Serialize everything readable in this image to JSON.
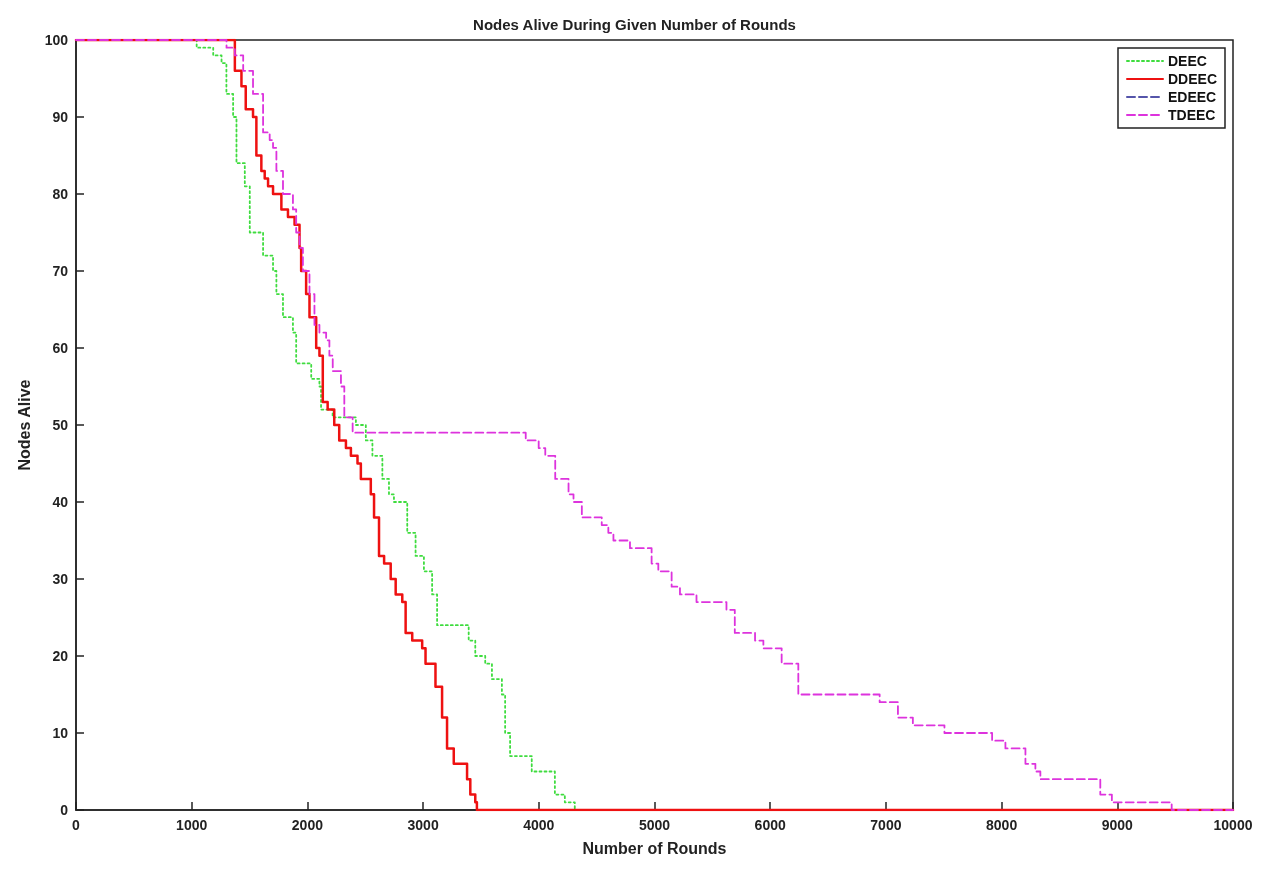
{
  "chart_data": {
    "type": "step",
    "title": "Nodes Alive During Given Number of Rounds",
    "xlabel": "Number of Rounds",
    "ylabel": "Nodes Alive",
    "xlim": [
      0,
      10000
    ],
    "xticks": [
      0,
      1000,
      2000,
      3000,
      4000,
      5000,
      6000,
      7000,
      8000,
      9000,
      10000
    ],
    "ylim": [
      0,
      100
    ],
    "yticks": [
      0,
      10,
      20,
      30,
      40,
      50,
      60,
      70,
      80,
      90,
      100
    ],
    "grid": false,
    "legend": "top right",
    "marker": "none",
    "series": [
      {
        "name": "DEEC",
        "color": "#3fdc3f",
        "line_style": "dotted",
        "x": [
          0,
          1043,
          1186,
          1258,
          1300,
          1358,
          1387,
          1459,
          1502,
          1617,
          1703,
          1732,
          1789,
          1875,
          1903,
          2033,
          2104,
          2118,
          2218,
          2419,
          2505,
          2562,
          2648,
          2705,
          2748,
          2863,
          2935,
          3007,
          3078,
          3121,
          3394,
          3451,
          3537,
          3595,
          3681,
          3709,
          3752,
          3939,
          4139,
          4225,
          4311
        ],
        "values": [
          100,
          99,
          98,
          97,
          93,
          90,
          84,
          81,
          75,
          72,
          70,
          67,
          64,
          62,
          58,
          56,
          55,
          52,
          51,
          50,
          48,
          46,
          43,
          41,
          40,
          36,
          33,
          31,
          28,
          24,
          22,
          20,
          19,
          17,
          15,
          10,
          7,
          5,
          2,
          1,
          0
        ]
      },
      {
        "name": "DDEEC",
        "color": "#ee1111",
        "line_style": "solid",
        "x": [
          0,
          1373,
          1430,
          1467,
          1530,
          1559,
          1602,
          1631,
          1660,
          1703,
          1775,
          1832,
          1889,
          1932,
          1946,
          1989,
          2018,
          2076,
          2104,
          2133,
          2175,
          2232,
          2275,
          2333,
          2376,
          2433,
          2462,
          2548,
          2576,
          2619,
          2663,
          2720,
          2763,
          2820,
          2849,
          2906,
          2992,
          3021,
          3107,
          3164,
          3207,
          3265,
          3380,
          3408,
          3451,
          3465,
          10000
        ],
        "values": [
          100,
          96,
          94,
          91,
          90,
          85,
          83,
          82,
          81,
          80,
          78,
          77,
          76,
          73,
          70,
          67,
          64,
          60,
          59,
          53,
          52,
          50,
          48,
          47,
          46,
          45,
          43,
          41,
          38,
          33,
          32,
          30,
          28,
          27,
          23,
          22,
          21,
          19,
          16,
          12,
          8,
          6,
          4,
          2,
          1,
          0,
          0
        ]
      },
      {
        "name": "EDEEC",
        "color": "#5555aa",
        "line_style": "dashed"
      },
      {
        "name": "TDEEC",
        "color": "#dd33dd",
        "line_style": "dashed",
        "x": [
          0,
          1301,
          1373,
          1445,
          1530,
          1617,
          1674,
          1703,
          1732,
          1789,
          1875,
          1903,
          1932,
          1961,
          2018,
          2061,
          2104,
          2162,
          2190,
          2219,
          2290,
          2319,
          2391,
          3887,
          3999,
          4056,
          4142,
          4257,
          4300,
          4372,
          4544,
          4601,
          4645,
          4788,
          4975,
          5033,
          5148,
          5220,
          5363,
          5622,
          5694,
          5869,
          5941,
          6099,
          6243,
          6946,
          7104,
          7233,
          7506,
          7918,
          8033,
          8206,
          8292,
          8335,
          8853,
          8953,
          9470,
          10000
        ],
        "values": [
          100,
          99,
          98,
          96,
          93,
          88,
          87,
          86,
          83,
          80,
          78,
          75,
          73,
          70,
          67,
          63,
          62,
          61,
          59,
          57,
          55,
          51,
          49,
          48,
          47,
          46,
          43,
          41,
          40,
          38,
          37,
          36,
          35,
          34,
          32,
          31,
          29,
          28,
          27,
          26,
          23,
          22,
          21,
          19,
          15,
          14,
          12,
          11,
          10,
          9,
          8,
          6,
          5,
          4,
          2,
          1,
          0,
          0
        ]
      }
    ]
  }
}
